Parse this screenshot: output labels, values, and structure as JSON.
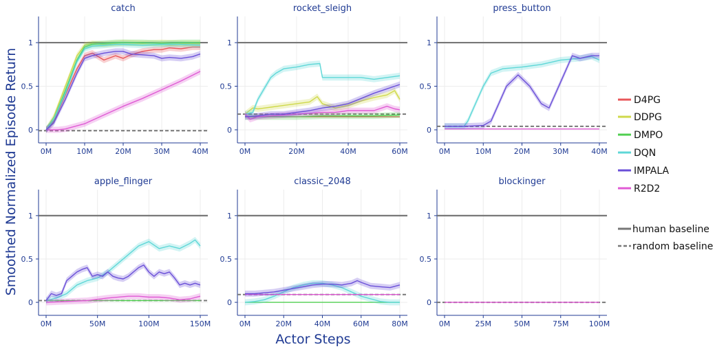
{
  "figure": {
    "ylabel": "Smoothed Normalized Episode Return",
    "xlabel": "Actor Steps"
  },
  "legend": {
    "items": [
      {
        "label": "D4PG",
        "color": "#e8565a"
      },
      {
        "label": "DDPG",
        "color": "#cfd94a"
      },
      {
        "label": "DMPO",
        "color": "#4fcf4f"
      },
      {
        "label": "DQN",
        "color": "#5ed7d7"
      },
      {
        "label": "IMPALA",
        "color": "#6a4fd8"
      },
      {
        "label": "R2D2",
        "color": "#e05ad4"
      }
    ],
    "baselines": [
      {
        "label": "human baseline",
        "color": "#777777",
        "style": "solid"
      },
      {
        "label": "random baseline",
        "color": "#777777",
        "style": "dashed"
      }
    ]
  },
  "chart_data": [
    {
      "type": "line",
      "title": "catch",
      "xlim": [
        0,
        40
      ],
      "xticks": [
        0,
        10,
        20,
        30,
        40
      ],
      "xtick_labels": [
        "0M",
        "10M",
        "20M",
        "30M",
        "40M"
      ],
      "ylim": [
        -0.15,
        1.3
      ],
      "yticks": [
        0,
        0.5,
        1
      ],
      "ytick_labels": [
        "0",
        "0.5",
        "1"
      ],
      "human_baseline": 1.0,
      "random_baseline": -0.01,
      "series": [
        {
          "name": "D4PG",
          "x": [
            0,
            2,
            5,
            8,
            10,
            12,
            15,
            18,
            20,
            22,
            25,
            28,
            30,
            32,
            35,
            38,
            40
          ],
          "y": [
            0,
            0.1,
            0.4,
            0.7,
            0.85,
            0.88,
            0.8,
            0.85,
            0.82,
            0.86,
            0.9,
            0.92,
            0.92,
            0.94,
            0.93,
            0.95,
            0.95
          ]
        },
        {
          "name": "DDPG",
          "x": [
            0,
            2,
            5,
            8,
            10,
            12,
            15,
            18,
            20,
            25,
            30,
            35,
            40
          ],
          "y": [
            0,
            0.15,
            0.5,
            0.85,
            0.97,
            0.99,
            0.98,
            0.99,
            1.0,
            0.99,
            1.0,
            0.99,
            0.99
          ]
        },
        {
          "name": "DMPO",
          "x": [
            0,
            2,
            5,
            8,
            10,
            12,
            15,
            18,
            20,
            25,
            30,
            35,
            40
          ],
          "y": [
            0,
            0.12,
            0.45,
            0.8,
            0.95,
            0.98,
            0.99,
            1.0,
            1.0,
            1.0,
            0.99,
            1.0,
            1.0
          ]
        },
        {
          "name": "DQN",
          "x": [
            0,
            2,
            5,
            8,
            10,
            12,
            15,
            18,
            20,
            25,
            30,
            35,
            40
          ],
          "y": [
            0,
            0.12,
            0.42,
            0.78,
            0.93,
            0.96,
            0.97,
            0.98,
            0.98,
            0.97,
            0.98,
            0.98,
            0.97
          ]
        },
        {
          "name": "IMPALA",
          "x": [
            0,
            2,
            5,
            8,
            10,
            12,
            15,
            18,
            20,
            22,
            25,
            28,
            30,
            32,
            35,
            38,
            40
          ],
          "y": [
            0,
            0.08,
            0.35,
            0.65,
            0.82,
            0.85,
            0.88,
            0.9,
            0.9,
            0.87,
            0.86,
            0.85,
            0.82,
            0.83,
            0.82,
            0.84,
            0.87
          ]
        },
        {
          "name": "R2D2",
          "x": [
            0,
            3,
            5,
            10,
            15,
            20,
            25,
            30,
            35,
            40
          ],
          "y": [
            0,
            0,
            0.01,
            0.07,
            0.17,
            0.27,
            0.36,
            0.46,
            0.56,
            0.67
          ]
        }
      ]
    },
    {
      "type": "line",
      "title": "rocket_sleigh",
      "xlim": [
        0,
        60
      ],
      "xticks": [
        0,
        20,
        40,
        60
      ],
      "xtick_labels": [
        "0M",
        "20M",
        "40M",
        "60M"
      ],
      "ylim": [
        -0.15,
        1.3
      ],
      "yticks": [
        0,
        0.5,
        1
      ],
      "ytick_labels": [
        "0",
        "0.5",
        "1"
      ],
      "human_baseline": 1.0,
      "random_baseline": 0.18,
      "series": [
        {
          "name": "D4PG",
          "x": [
            0,
            60
          ],
          "y": [
            0.15,
            0.15
          ]
        },
        {
          "name": "DDPG",
          "x": [
            0,
            3,
            5,
            10,
            15,
            20,
            25,
            28,
            30,
            35,
            40,
            45,
            50,
            55,
            58,
            60
          ],
          "y": [
            0.18,
            0.25,
            0.24,
            0.26,
            0.28,
            0.3,
            0.32,
            0.38,
            0.3,
            0.25,
            0.28,
            0.33,
            0.37,
            0.4,
            0.45,
            0.35
          ]
        },
        {
          "name": "DMPO",
          "x": [
            0,
            10,
            20,
            30,
            40,
            50,
            60
          ],
          "y": [
            0.15,
            0.15,
            0.15,
            0.16,
            0.16,
            0.16,
            0.17
          ]
        },
        {
          "name": "DQN",
          "x": [
            0,
            3,
            5,
            8,
            10,
            12,
            15,
            20,
            25,
            29,
            30,
            35,
            40,
            45,
            50,
            55,
            60
          ],
          "y": [
            0.18,
            0.2,
            0.35,
            0.5,
            0.6,
            0.65,
            0.7,
            0.72,
            0.75,
            0.76,
            0.6,
            0.6,
            0.6,
            0.6,
            0.58,
            0.6,
            0.62
          ]
        },
        {
          "name": "IMPALA",
          "x": [
            0,
            5,
            10,
            15,
            20,
            25,
            30,
            35,
            40,
            45,
            50,
            55,
            60
          ],
          "y": [
            0.15,
            0.16,
            0.18,
            0.18,
            0.2,
            0.22,
            0.25,
            0.27,
            0.3,
            0.36,
            0.42,
            0.47,
            0.52
          ]
        },
        {
          "name": "R2D2",
          "x": [
            0,
            2,
            5,
            10,
            15,
            20,
            25,
            30,
            35,
            40,
            45,
            50,
            55,
            58,
            60
          ],
          "y": [
            0.18,
            0.12,
            0.15,
            0.16,
            0.17,
            0.18,
            0.19,
            0.2,
            0.2,
            0.22,
            0.22,
            0.22,
            0.27,
            0.24,
            0.23
          ]
        }
      ]
    },
    {
      "type": "line",
      "title": "press_button",
      "xlim": [
        0,
        40
      ],
      "xticks": [
        0,
        10,
        20,
        30,
        40
      ],
      "xtick_labels": [
        "0M",
        "10M",
        "20M",
        "30M",
        "40M"
      ],
      "ylim": [
        -0.15,
        1.3
      ],
      "yticks": [
        0,
        0.5,
        1
      ],
      "ytick_labels": [
        "0",
        "0.5",
        "1"
      ],
      "human_baseline": 1.0,
      "random_baseline": 0.04,
      "series": [
        {
          "name": "DQN",
          "x": [
            0,
            5,
            6,
            8,
            10,
            12,
            15,
            20,
            25,
            30,
            35,
            38,
            40
          ],
          "y": [
            0.04,
            0.04,
            0.1,
            0.3,
            0.5,
            0.65,
            0.7,
            0.72,
            0.75,
            0.8,
            0.82,
            0.84,
            0.8
          ]
        },
        {
          "name": "IMPALA",
          "x": [
            0,
            5,
            10,
            12,
            14,
            16,
            19,
            22,
            25,
            27,
            30,
            33,
            35,
            38,
            40
          ],
          "y": [
            0.04,
            0.04,
            0.05,
            0.1,
            0.3,
            0.5,
            0.63,
            0.5,
            0.3,
            0.25,
            0.55,
            0.85,
            0.82,
            0.85,
            0.85
          ]
        },
        {
          "name": "R2D2",
          "x": [
            0,
            40
          ],
          "y": [
            0.01,
            0.01
          ]
        }
      ]
    },
    {
      "type": "line",
      "title": "apple_flinger",
      "xlim": [
        0,
        150
      ],
      "xticks": [
        0,
        50,
        100,
        150
      ],
      "xtick_labels": [
        "0M",
        "50M",
        "100M",
        "150M"
      ],
      "ylim": [
        -0.15,
        1.3
      ],
      "yticks": [
        0,
        0.5,
        1
      ],
      "ytick_labels": [
        "0",
        "0.5",
        "1"
      ],
      "human_baseline": 1.0,
      "random_baseline": 0.02,
      "series": [
        {
          "name": "DMPO",
          "x": [
            0,
            150
          ],
          "y": [
            0.02,
            0.02
          ]
        },
        {
          "name": "DQN",
          "x": [
            0,
            10,
            20,
            30,
            40,
            50,
            60,
            70,
            80,
            90,
            100,
            110,
            120,
            130,
            140,
            145,
            150
          ],
          "y": [
            0.02,
            0.05,
            0.1,
            0.2,
            0.25,
            0.28,
            0.35,
            0.45,
            0.55,
            0.65,
            0.7,
            0.62,
            0.65,
            0.62,
            0.68,
            0.72,
            0.65
          ]
        },
        {
          "name": "IMPALA",
          "x": [
            0,
            5,
            10,
            15,
            20,
            25,
            30,
            35,
            40,
            45,
            50,
            55,
            60,
            65,
            70,
            75,
            80,
            85,
            90,
            95,
            100,
            105,
            110,
            115,
            120,
            125,
            130,
            135,
            140,
            145,
            150
          ],
          "y": [
            0.02,
            0.1,
            0.08,
            0.1,
            0.25,
            0.3,
            0.35,
            0.38,
            0.4,
            0.3,
            0.32,
            0.3,
            0.35,
            0.3,
            0.28,
            0.27,
            0.3,
            0.35,
            0.4,
            0.43,
            0.35,
            0.3,
            0.35,
            0.33,
            0.35,
            0.28,
            0.2,
            0.22,
            0.2,
            0.22,
            0.2
          ]
        },
        {
          "name": "R2D2",
          "x": [
            0,
            20,
            40,
            60,
            80,
            90,
            100,
            110,
            120,
            130,
            140,
            150
          ],
          "y": [
            0,
            0.01,
            0.02,
            0.05,
            0.07,
            0.07,
            0.06,
            0.06,
            0.05,
            0.03,
            0.04,
            0.07
          ]
        }
      ]
    },
    {
      "type": "line",
      "title": "classic_2048",
      "xlim": [
        0,
        80
      ],
      "xticks": [
        0,
        20,
        40,
        60,
        80
      ],
      "xtick_labels": [
        "0M",
        "20M",
        "40M",
        "60M",
        "80M"
      ],
      "ylim": [
        -0.15,
        1.3
      ],
      "yticks": [
        0,
        0.5,
        1
      ],
      "ytick_labels": [
        "0",
        "0.5",
        "1"
      ],
      "human_baseline": 1.0,
      "random_baseline": 0.09,
      "series": [
        {
          "name": "DMPO",
          "x": [
            0,
            80
          ],
          "y": [
            0,
            0
          ]
        },
        {
          "name": "DQN",
          "x": [
            0,
            5,
            10,
            15,
            20,
            25,
            30,
            35,
            40,
            45,
            50,
            55,
            60,
            65,
            70,
            75,
            80
          ],
          "y": [
            0,
            0.01,
            0.03,
            0.07,
            0.12,
            0.17,
            0.2,
            0.22,
            0.22,
            0.2,
            0.17,
            0.12,
            0.07,
            0.04,
            0.01,
            0,
            0
          ]
        },
        {
          "name": "IMPALA",
          "x": [
            0,
            5,
            10,
            15,
            20,
            25,
            30,
            35,
            40,
            45,
            50,
            55,
            58,
            60,
            65,
            70,
            75,
            80
          ],
          "y": [
            0.1,
            0.1,
            0.11,
            0.12,
            0.14,
            0.16,
            0.18,
            0.2,
            0.21,
            0.21,
            0.2,
            0.22,
            0.25,
            0.23,
            0.19,
            0.18,
            0.17,
            0.2
          ]
        },
        {
          "name": "R2D2",
          "x": [
            0,
            20,
            40,
            60,
            80
          ],
          "y": [
            0.09,
            0.09,
            0.09,
            0.09,
            0.09
          ]
        }
      ]
    },
    {
      "type": "line",
      "title": "blockinger",
      "xlim": [
        0,
        100
      ],
      "xticks": [
        0,
        25,
        50,
        75,
        100
      ],
      "xtick_labels": [
        "0M",
        "25M",
        "50M",
        "75M",
        "100M"
      ],
      "ylim": [
        -0.15,
        1.3
      ],
      "yticks": [
        0,
        0.5,
        1
      ],
      "ytick_labels": [
        "0",
        "0.5",
        "1"
      ],
      "human_baseline": 1.0,
      "random_baseline": 0.0,
      "series": [
        {
          "name": "R2D2",
          "x": [
            0,
            100
          ],
          "y": [
            0,
            0
          ]
        }
      ]
    }
  ]
}
